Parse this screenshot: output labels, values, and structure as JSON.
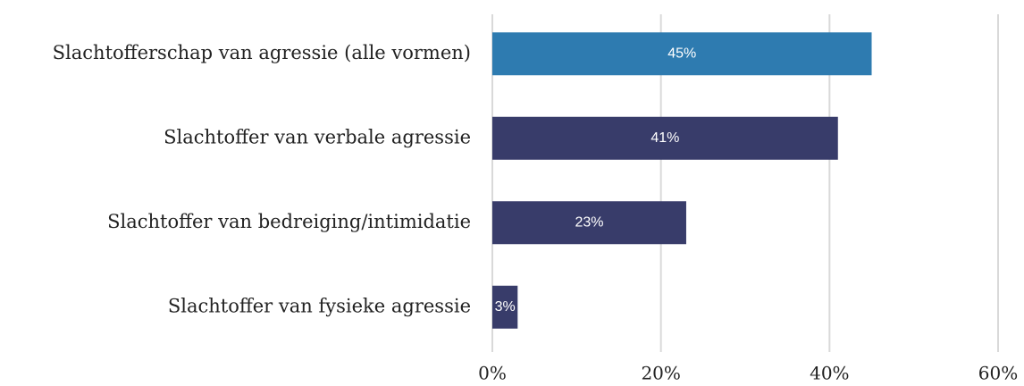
{
  "chart_data": {
    "type": "bar",
    "orientation": "horizontal",
    "categories": [
      "Slachtofferschap van agressie (alle vormen)",
      "Slachtoffer van verbale agressie",
      "Slachtoffer van bedreiging/intimidatie",
      "Slachtoffer van fysieke agressie"
    ],
    "values": [
      45,
      41,
      23,
      3
    ],
    "value_labels": [
      "45%",
      "41%",
      "23%",
      "3%"
    ],
    "colors": [
      "#2e7bb0",
      "#383c6a",
      "#383c6a",
      "#383c6a"
    ],
    "xlim": [
      0,
      60
    ],
    "xticks": [
      {
        "value": 0,
        "label": "0%"
      },
      {
        "value": 20,
        "label": "20%"
      },
      {
        "value": 40,
        "label": "40%"
      },
      {
        "value": 60,
        "label": "60%"
      }
    ],
    "grid": true
  }
}
